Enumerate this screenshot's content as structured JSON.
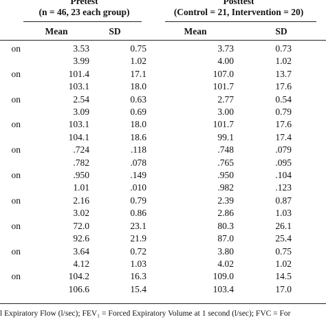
{
  "header": {
    "pretest_title": "Pretest",
    "pretest_sub": "(n = 46, 23 each group)",
    "posttest_title": "Posttest",
    "posttest_sub": "(Control = 21, Intervention = 20)",
    "col_mean_1": "Mean",
    "col_sd_1": "SD",
    "col_mean_2": "Mean",
    "col_sd_2": "SD"
  },
  "rows": [
    {
      "label": "on",
      "pre_mean": "3.53",
      "pre_sd": "0.75",
      "post_mean": "3.73",
      "post_sd": "0.73"
    },
    {
      "label": "",
      "pre_mean": "3.99",
      "pre_sd": "1.02",
      "post_mean": "4.00",
      "post_sd": "1.02"
    },
    {
      "label": "on",
      "pre_mean": "101.4",
      "pre_sd": "17.1",
      "post_mean": "107.0",
      "post_sd": "13.7"
    },
    {
      "label": "",
      "pre_mean": "103.1",
      "pre_sd": "18.0",
      "post_mean": "101.7",
      "post_sd": "17.6"
    },
    {
      "label": "on",
      "pre_mean": "2.54",
      "pre_sd": "0.63",
      "post_mean": "2.77",
      "post_sd": "0.54"
    },
    {
      "label": "",
      "pre_mean": "3.09",
      "pre_sd": "0.69",
      "post_mean": "3.00",
      "post_sd": "0.79"
    },
    {
      "label": "on",
      "pre_mean": "103.1",
      "pre_sd": "18.0",
      "post_mean": "101.7",
      "post_sd": "17.6"
    },
    {
      "label": "",
      "pre_mean": "104.1",
      "pre_sd": "18.6",
      "post_mean": "99.1",
      "post_sd": "17.4"
    },
    {
      "label": "on",
      "pre_mean": ".724",
      "pre_sd": ".118",
      "post_mean": ".748",
      "post_sd": ".079"
    },
    {
      "label": "",
      "pre_mean": ".782",
      "pre_sd": ".078",
      "post_mean": ".765",
      "post_sd": ".095"
    },
    {
      "label": "on",
      "pre_mean": ".950",
      "pre_sd": ".149",
      "post_mean": ".950",
      "post_sd": ".104"
    },
    {
      "label": "",
      "pre_mean": "1.01",
      "pre_sd": ".010",
      "post_mean": ".982",
      "post_sd": ".123"
    },
    {
      "label": "on",
      "pre_mean": "2.16",
      "pre_sd": "0.79",
      "post_mean": "2.39",
      "post_sd": "0.87"
    },
    {
      "label": "",
      "pre_mean": "3.02",
      "pre_sd": "0.86",
      "post_mean": "2.86",
      "post_sd": "1.03"
    },
    {
      "label": "on",
      "pre_mean": "72.0",
      "pre_sd": "23.1",
      "post_mean": "80.3",
      "post_sd": "26.1"
    },
    {
      "label": "",
      "pre_mean": "92.6",
      "pre_sd": "21.9",
      "post_mean": "87.0",
      "post_sd": "25.4"
    },
    {
      "label": "on",
      "pre_mean": "3.64",
      "pre_sd": "0.72",
      "post_mean": "3.80",
      "post_sd": "0.75"
    },
    {
      "label": "",
      "pre_mean": "4.12",
      "pre_sd": "1.03",
      "post_mean": "4.02",
      "post_sd": "1.02"
    },
    {
      "label": "on",
      "pre_mean": "104.2",
      "pre_sd": "16.3",
      "post_mean": "109.0",
      "post_sd": "14.5"
    },
    {
      "label": "",
      "pre_mean": "106.6",
      "pre_sd": "15.4",
      "post_mean": "103.4",
      "post_sd": "17.0"
    }
  ],
  "footnote": "l Expiratory Flow (l/sec); FEV₁ = Forced Expiratory Volume at 1 second (l/sec); FVC = For"
}
